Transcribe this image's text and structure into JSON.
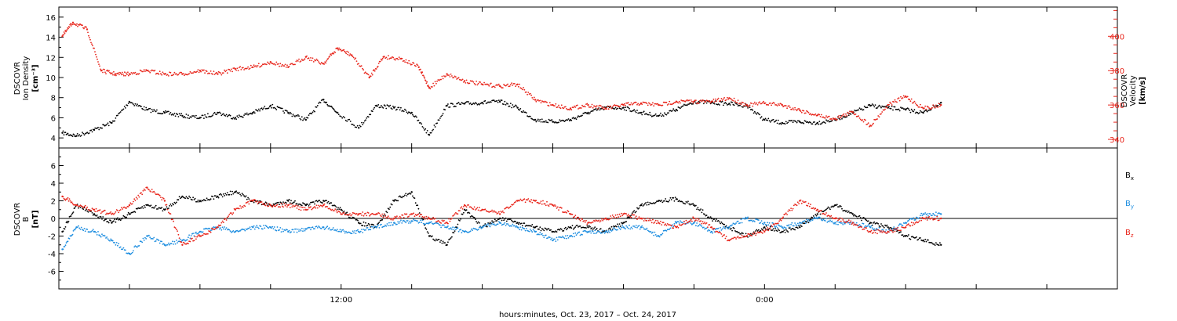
{
  "chart_data": [
    {
      "type": "scatter",
      "panel": "top",
      "left_axis_label": [
        "DSCOVR",
        "Ion Density",
        "[cm⁻³]"
      ],
      "right_axis_label": [
        "DSCOVR",
        "Velocity",
        "[km/s]"
      ],
      "left_ylim": [
        3,
        17
      ],
      "right_ylim": [
        335,
        417
      ],
      "left_ticks": [
        "4",
        "6",
        "8",
        "10",
        "12",
        "14",
        "16"
      ],
      "right_ticks": [
        "340",
        "360",
        "380",
        "400"
      ],
      "series": [
        {
          "axis": "left",
          "color": "#000000",
          "x": [
            4.1,
            4.5,
            5,
            5.5,
            6,
            6.5,
            7,
            7.5,
            8,
            8.5,
            9,
            9.5,
            10,
            10.5,
            11,
            11.5,
            11.9,
            12.5,
            13,
            13.5,
            14,
            14.5,
            15,
            15.5,
            16,
            16.5,
            17,
            17.5,
            18,
            18.5,
            19,
            19.5,
            20,
            20.5,
            21,
            21.5,
            22,
            22.5,
            23,
            23.5,
            24,
            24.5,
            25,
            25.5,
            26,
            26.5,
            27,
            27.5,
            28,
            28.5,
            29
          ],
          "values": [
            4.5,
            4.2,
            4.8,
            5.5,
            7.6,
            6.8,
            6.5,
            6.2,
            6.0,
            6.5,
            6.0,
            6.5,
            7.2,
            6.5,
            5.8,
            7.8,
            6.5,
            5.0,
            7.2,
            7.0,
            6.5,
            4.3,
            7.2,
            7.4,
            7.5,
            7.6,
            7.0,
            5.8,
            5.6,
            5.8,
            6.5,
            7.0,
            7.0,
            6.5,
            6.2,
            6.8,
            7.6,
            7.5,
            7.4,
            7.2,
            5.8,
            5.5,
            5.6,
            5.5,
            5.8,
            6.5,
            7.2,
            7.0,
            6.8,
            6.5,
            7.5
          ]
        },
        {
          "axis": "right",
          "color": "#e8261c",
          "x": [
            4.1,
            4.4,
            4.8,
            5.2,
            5.6,
            6,
            6.5,
            7,
            7.5,
            8,
            8.5,
            9,
            9.5,
            10,
            10.5,
            11,
            11.5,
            11.9,
            12.3,
            12.8,
            13.2,
            13.7,
            14.2,
            14.5,
            15,
            15.5,
            16,
            16.5,
            17,
            17.5,
            18,
            18.5,
            19,
            19.5,
            20,
            20.5,
            21,
            21.5,
            22,
            22.5,
            23,
            23.5,
            24,
            24.5,
            25,
            25.5,
            26,
            26.5,
            27,
            27.5,
            28,
            28.5,
            29
          ],
          "values": [
            400,
            408,
            404,
            380,
            378,
            378,
            380,
            378,
            378,
            380,
            378,
            381,
            382,
            385,
            382,
            388,
            384,
            393,
            389,
            376,
            388,
            387,
            382,
            370,
            378,
            374,
            372,
            371,
            372,
            363,
            360,
            358,
            360,
            358,
            360,
            361,
            360,
            362,
            362,
            362,
            364,
            360,
            361,
            360,
            357,
            354,
            352,
            356,
            348,
            360,
            365,
            358,
            360
          ]
        }
      ]
    },
    {
      "type": "scatter",
      "panel": "bottom",
      "left_axis_label": [
        "DSCOVR",
        "B",
        "[nT]"
      ],
      "ylim": [
        -8,
        8
      ],
      "ticks": [
        "-6",
        "-4",
        "-2",
        "0",
        "2",
        "4",
        "6"
      ],
      "x_tick_labels": [
        {
          "x": 12,
          "label": "12:00"
        },
        {
          "x": 24,
          "label": "0:00"
        }
      ],
      "x_range_hours": [
        4,
        34
      ],
      "xlabel": "hours:minutes, Oct. 23, 2017 – Oct. 24, 2017",
      "series": [
        {
          "name": "Bx",
          "legend_label": "B",
          "legend_sub": "x",
          "color": "#000000",
          "x": [
            4.1,
            4.5,
            5,
            5.5,
            6,
            6.5,
            7,
            7.5,
            8,
            8.5,
            9,
            9.5,
            10,
            10.5,
            11,
            11.5,
            12,
            12.5,
            13,
            13.5,
            14,
            14.5,
            15,
            15.5,
            16,
            16.5,
            17,
            17.5,
            18,
            18.5,
            19,
            19.5,
            20,
            20.5,
            21,
            21.5,
            22,
            22.5,
            23,
            23.5,
            24,
            24.5,
            25,
            25.5,
            26,
            26.5,
            27,
            27.5,
            28,
            28.5,
            29
          ],
          "values": [
            -1.5,
            1.5,
            0.5,
            -0.5,
            0.5,
            1.5,
            1.0,
            2.5,
            2.0,
            2.5,
            3.0,
            2.0,
            1.5,
            2.0,
            1.5,
            2.0,
            1.0,
            -0.5,
            -1.0,
            2.0,
            3.0,
            -2.0,
            -3.0,
            1.0,
            -1.0,
            0.0,
            -0.5,
            -1.0,
            -1.5,
            -1.0,
            -1.0,
            -1.5,
            -0.5,
            1.5,
            2.0,
            2.2,
            1.5,
            0.0,
            -1.0,
            -2.0,
            -1.0,
            -1.5,
            -1.0,
            0.5,
            1.5,
            0.5,
            -0.5,
            -1.0,
            -2.0,
            -2.5,
            -3.0
          ]
        },
        {
          "name": "By",
          "legend_label": "B",
          "legend_sub": "y",
          "color": "#1e8ee0",
          "x": [
            4.1,
            4.5,
            5,
            5.5,
            6,
            6.5,
            7,
            7.5,
            8,
            8.5,
            9,
            9.5,
            10,
            10.5,
            11,
            11.5,
            12,
            12.5,
            13,
            13.5,
            14,
            14.5,
            15,
            15.5,
            16,
            16.5,
            17,
            17.5,
            18,
            18.5,
            19,
            19.5,
            20,
            20.5,
            21,
            21.5,
            22,
            22.5,
            23,
            23.5,
            24,
            24.5,
            25,
            25.5,
            26,
            26.5,
            27,
            27.5,
            28,
            28.5,
            29
          ],
          "values": [
            -3.5,
            -1.0,
            -1.5,
            -2.5,
            -4.0,
            -2.0,
            -3.0,
            -2.5,
            -1.5,
            -1.0,
            -1.5,
            -1.0,
            -1.0,
            -1.5,
            -1.2,
            -1.0,
            -1.5,
            -1.5,
            -1.0,
            -0.5,
            -0.3,
            -0.5,
            -1.0,
            -1.5,
            -1.0,
            -0.5,
            -1.0,
            -1.5,
            -2.5,
            -2.0,
            -1.5,
            -1.5,
            -1.0,
            -1.0,
            -2.0,
            -0.5,
            -0.5,
            -1.5,
            -1.0,
            0.0,
            -0.5,
            -1.0,
            -0.5,
            0.0,
            -0.5,
            -0.5,
            -1.0,
            -1.5,
            -0.5,
            0.5,
            0.5
          ]
        },
        {
          "name": "Bz",
          "legend_label": "B",
          "legend_sub": "z",
          "color": "#e8261c",
          "x": [
            4.1,
            4.5,
            5,
            5.5,
            6,
            6.5,
            7,
            7.5,
            8,
            8.5,
            9,
            9.5,
            10,
            10.5,
            11,
            11.5,
            12,
            12.5,
            13,
            13.5,
            14,
            14.5,
            15,
            15.5,
            16,
            16.5,
            17,
            17.5,
            18,
            18.5,
            19,
            19.5,
            20,
            20.5,
            21,
            21.5,
            22,
            22.5,
            23,
            23.5,
            24,
            24.5,
            25,
            25.5,
            26,
            26.5,
            27,
            27.5,
            28,
            28.5,
            29
          ],
          "values": [
            2.5,
            1.5,
            1.0,
            0.5,
            1.5,
            3.5,
            2.0,
            -3.0,
            -2.0,
            -1.0,
            1.0,
            2.0,
            1.5,
            1.5,
            1.0,
            1.5,
            0.5,
            0.5,
            0.5,
            0.0,
            0.5,
            0.0,
            -0.5,
            1.5,
            1.0,
            0.5,
            2.0,
            2.0,
            1.5,
            0.5,
            -0.5,
            0.0,
            0.5,
            0.0,
            -0.5,
            -1.0,
            0.0,
            -1.0,
            -2.5,
            -2.0,
            -1.5,
            0.0,
            2.0,
            1.0,
            0.0,
            -0.5,
            -1.5,
            -1.5,
            -1.0,
            0.0,
            0.0
          ]
        }
      ]
    }
  ]
}
